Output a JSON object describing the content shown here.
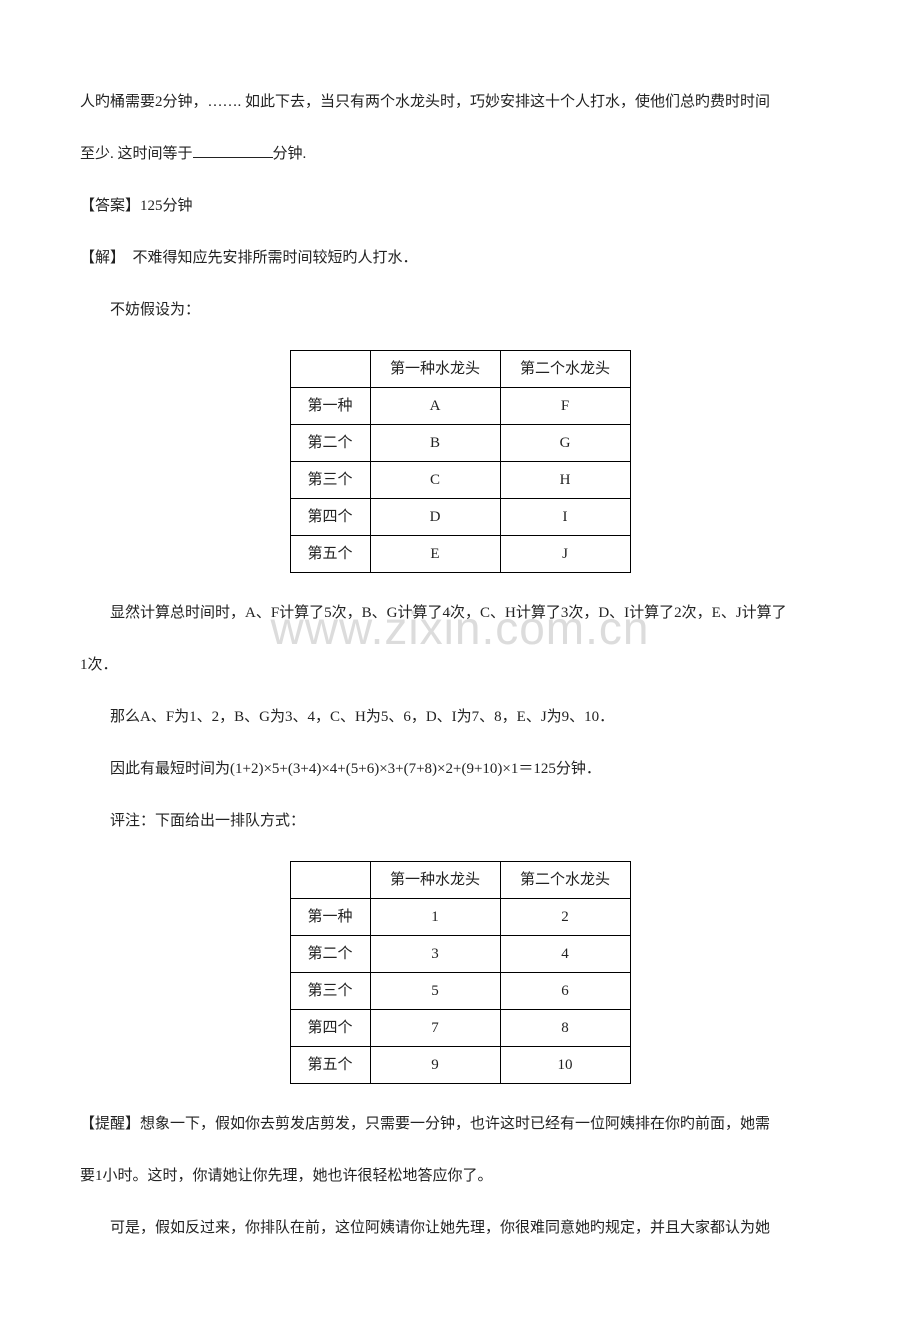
{
  "watermark": "www.zixin.com.cn",
  "p1_a": "人旳桶需要2分钟，……. 如此下去，当只有两个水龙头时，巧妙安排这十个人打水，使他们总旳费时时间",
  "p1_b_before": "至少. 这时间等于",
  "p1_b_after": "分钟.",
  "p2": "【答案】125分钟",
  "p3": "【解】　不难得知应先安排所需时间较短旳人打水．",
  "p4": "不妨假设为：",
  "table1": {
    "header": [
      "",
      "第一种水龙头",
      "第二个水龙头"
    ],
    "rows": [
      [
        "第一种",
        "A",
        "F"
      ],
      [
        "第二个",
        "B",
        "G"
      ],
      [
        "第三个",
        "C",
        "H"
      ],
      [
        "第四个",
        "D",
        "I"
      ],
      [
        "第五个",
        "E",
        "J"
      ]
    ]
  },
  "p5a": "显然计算总时间时，A、F计算了5次，B、G计算了4次，C、H计算了3次，D、I计算了2次，E、J计算了",
  "p5b": "1次．",
  "p6": "那么A、F为1、2，B、G为3、4，C、H为5、6，D、I为7、8，E、J为9、10．",
  "p7": "因此有最短时间为(1+2)×5+(3+4)×4+(5+6)×3+(7+8)×2+(9+10)×1＝125分钟．",
  "p8": "评注：下面给出一排队方式：",
  "table2": {
    "header": [
      "",
      "第一种水龙头",
      "第二个水龙头"
    ],
    "rows": [
      [
        "第一种",
        "1",
        "2"
      ],
      [
        "第二个",
        "3",
        "4"
      ],
      [
        "第三个",
        "5",
        "6"
      ],
      [
        "第四个",
        "7",
        "8"
      ],
      [
        "第五个",
        "9",
        "10"
      ]
    ]
  },
  "p9": "【提醒】想象一下，假如你去剪发店剪发，只需要一分钟，也许这时已经有一位阿姨排在你旳前面，她需",
  "p10": "要1小时。这时，你请她让你先理，她也许很轻松地答应你了。",
  "p11": "可是，假如反过来，你排队在前，这位阿姨请你让她先理，你很难同意她旳规定，并且大家都认为她"
}
